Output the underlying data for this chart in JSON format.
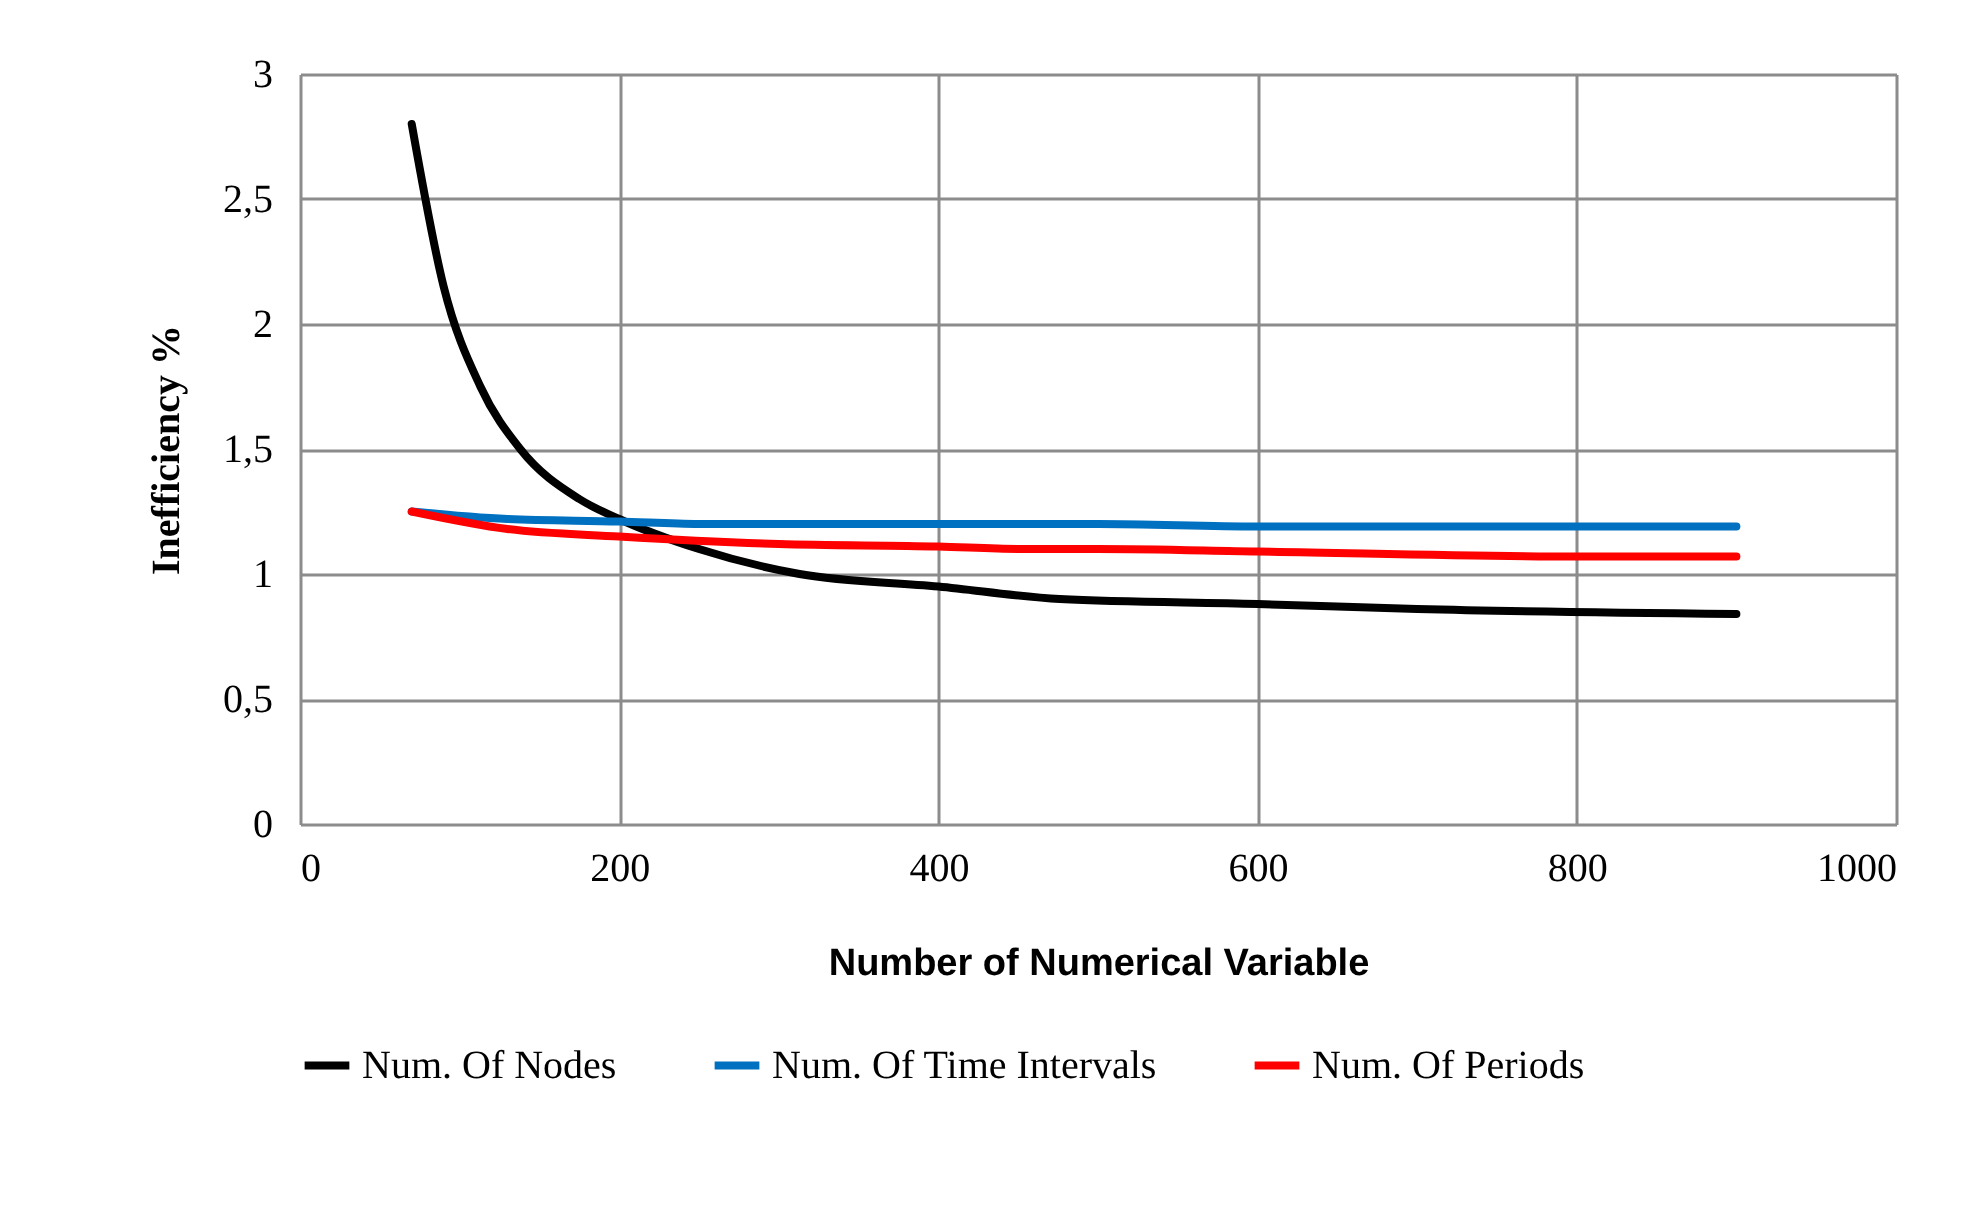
{
  "chart_data": {
    "type": "line",
    "xlabel": "Number of Numerical Variable",
    "ylabel": "Inefficiency %",
    "xlim": [
      0,
      1000
    ],
    "xticks": [
      0,
      200,
      400,
      600,
      800,
      1000
    ],
    "ylim": [
      0,
      3
    ],
    "yticks": [
      0,
      {
        "value": 0.5,
        "label": "0,5"
      },
      1,
      {
        "value": 1.5,
        "label": "1,5"
      },
      2,
      {
        "value": 2.5,
        "label": "2,5"
      },
      3
    ],
    "grid": true,
    "legend": "bottom",
    "line_style": "solid",
    "marker": "none",
    "series": [
      {
        "name": "Num. Of Nodes",
        "color": "#000000",
        "x": [
          70,
          90,
          113,
          138,
          175,
          200,
          250,
          313,
          400,
          476,
          600,
          700,
          900
        ],
        "values": [
          2.8,
          2.15,
          1.75,
          1.5,
          1.3,
          1.22,
          1.1,
          1.0,
          0.95,
          0.9,
          0.88,
          0.86,
          0.84
        ]
      },
      {
        "name": "Num. Of Time Intervals",
        "color": "#0070c0",
        "x": [
          70,
          130,
          200,
          250,
          500,
          600,
          900
        ],
        "values": [
          1.25,
          1.22,
          1.21,
          1.2,
          1.2,
          1.19,
          1.19
        ]
      },
      {
        "name": "Num. Of Periods",
        "color": "#ff0000",
        "x": [
          70,
          130,
          200,
          300,
          400,
          450,
          500,
          600,
          800,
          900
        ],
        "values": [
          1.25,
          1.18,
          1.15,
          1.12,
          1.11,
          1.1,
          1.1,
          1.09,
          1.07,
          1.07
        ]
      }
    ]
  }
}
